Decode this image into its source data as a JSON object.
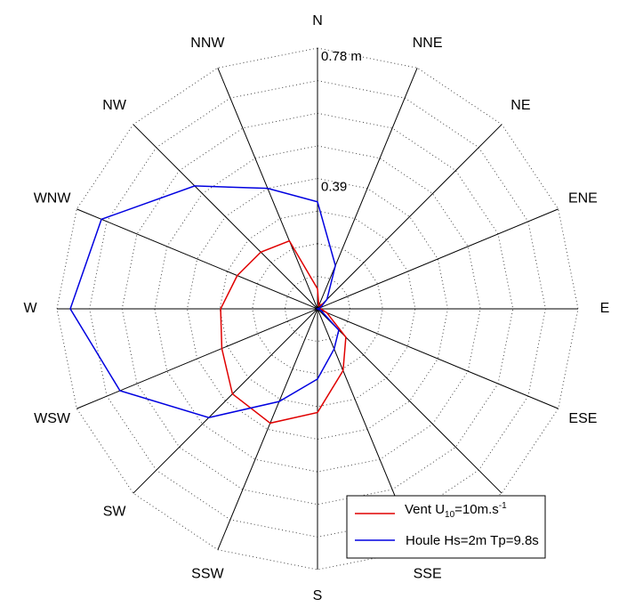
{
  "chart_data": {
    "type": "polar-line",
    "directions": [
      "N",
      "NNE",
      "NE",
      "ENE",
      "E",
      "ESE",
      "SE",
      "SSE",
      "S",
      "SSW",
      "SW",
      "WSW",
      "W",
      "WNW",
      "NW",
      "NNW"
    ],
    "r_max": 0.78,
    "radial_ticks": [
      {
        "value": 0.78,
        "label": "0.78 m"
      },
      {
        "value": 0.39,
        "label": "0.39"
      }
    ],
    "grid_rings": 8,
    "series": [
      {
        "name_prefix": "Vent U",
        "name_sub": "10",
        "name_mid": "=10m.s",
        "name_sup": "-1",
        "color": "#e00000",
        "values": [
          0.06,
          0.01,
          0.02,
          0.01,
          0.01,
          0.03,
          0.12,
          0.2,
          0.31,
          0.37,
          0.36,
          0.31,
          0.29,
          0.26,
          0.24,
          0.22
        ]
      },
      {
        "name": "Houle Hs=2m Tp=9.8s",
        "color": "#0000e0",
        "values": [
          0.32,
          0.14,
          0.04,
          0.01,
          0.0,
          0.01,
          0.09,
          0.13,
          0.21,
          0.3,
          0.46,
          0.64,
          0.74,
          0.7,
          0.52,
          0.39
        ]
      }
    ]
  }
}
